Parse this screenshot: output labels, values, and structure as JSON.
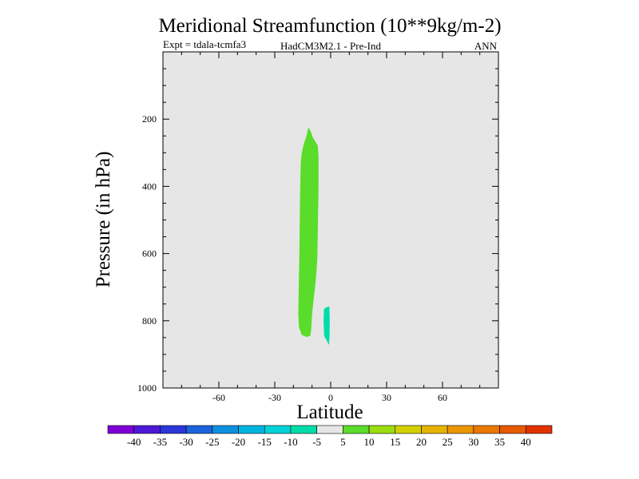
{
  "chart_data": {
    "type": "contour",
    "title": "Meridional Streamfunction (10**9kg/m-2)",
    "experiment": "Expt = tdala-tcmfa3",
    "model": "HadCM3M2.1 - Pre-Ind",
    "season": "ANN",
    "xlabel": "Latitude",
    "ylabel": "Pressure (in hPa)",
    "xlim": [
      -90,
      90
    ],
    "ylim": [
      1000,
      0
    ],
    "x_ticks": [
      -60,
      -30,
      0,
      30,
      60
    ],
    "x_tick_labels": [
      "-60",
      "-30",
      "0",
      "30",
      "60"
    ],
    "y_ticks": [
      200,
      400,
      600,
      800,
      1000
    ],
    "y_tick_labels": [
      "200",
      "400",
      "600",
      "800",
      "1000"
    ],
    "background_color": "#e6e6e6",
    "colorbar": {
      "colors": [
        "#7f00d4",
        "#4c1ad6",
        "#2a36d8",
        "#1a63dd",
        "#0e90e0",
        "#00b4e0",
        "#00d2d8",
        "#00dca8",
        "#e6e6e6",
        "#5adc2a",
        "#9cdc10",
        "#d2d000",
        "#e6b400",
        "#eb9600",
        "#eb7800",
        "#e65a00",
        "#e13200"
      ],
      "boundaries": [
        -40,
        -35,
        -30,
        -25,
        -20,
        -15,
        -10,
        -5,
        5,
        10,
        15,
        20,
        25,
        30,
        35,
        40
      ],
      "labels": [
        "-40",
        "-35",
        "-30",
        "-25",
        "-20",
        "-15",
        "-10",
        "-5",
        "5",
        "10",
        "15",
        "20",
        "25",
        "30",
        "35",
        "40"
      ]
    },
    "regions": [
      {
        "name": "positive-cell",
        "level": "5 to 10",
        "color": "#5adc2a",
        "polygon": [
          [
            -16,
            325
          ],
          [
            -15.5,
            300
          ],
          [
            -14.5,
            275
          ],
          [
            -13,
            250
          ],
          [
            -12,
            225
          ],
          [
            -11,
            232
          ],
          [
            -9.5,
            255
          ],
          [
            -7,
            278
          ],
          [
            -6.5,
            310
          ],
          [
            -6.5,
            400
          ],
          [
            -6.8,
            500
          ],
          [
            -7.2,
            620
          ],
          [
            -8,
            680
          ],
          [
            -9,
            730
          ],
          [
            -10,
            780
          ],
          [
            -10.5,
            830
          ],
          [
            -11,
            845
          ],
          [
            -13,
            848
          ],
          [
            -15.5,
            842
          ],
          [
            -17,
            820
          ],
          [
            -17.4,
            780
          ],
          [
            -17.2,
            720
          ],
          [
            -17,
            660
          ],
          [
            -16.8,
            600
          ],
          [
            -16.6,
            500
          ],
          [
            -16.4,
            420
          ],
          [
            -16.2,
            360
          ]
        ]
      },
      {
        "name": "negative-cell",
        "level": "-10 to -5",
        "color": "#00dca8",
        "polygon": [
          [
            -3.6,
            765
          ],
          [
            -2.5,
            760
          ],
          [
            -0.7,
            758
          ],
          [
            -0.5,
            800
          ],
          [
            -0.6,
            845
          ],
          [
            -0.9,
            872
          ],
          [
            -2,
            860
          ],
          [
            -3.5,
            845
          ],
          [
            -3.8,
            800
          ]
        ]
      }
    ]
  }
}
